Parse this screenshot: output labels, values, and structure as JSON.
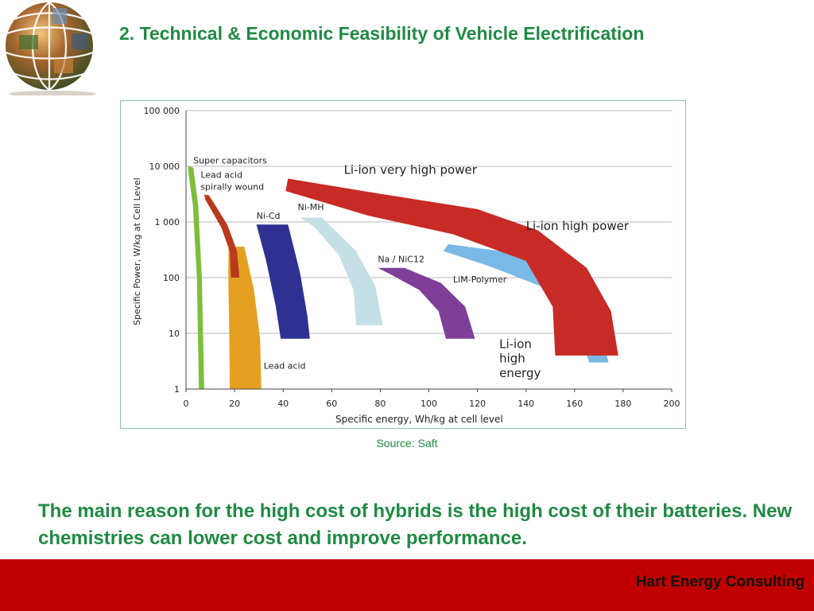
{
  "header": {
    "title": "2. Technical & Economic Feasibility of Vehicle Electrification"
  },
  "logo": {
    "icon": "globe-photo-collage-icon"
  },
  "source": "Source: Saft",
  "message": "The main reason for the high cost of hybrids is the high cost of their batteries. New chemistries can lower cost and improve performance.",
  "footer": {
    "company": "Hart Energy Consulting",
    "color": "#c00000"
  },
  "colors": {
    "accent": "#1f8a43"
  },
  "chart_data": {
    "type": "area",
    "xlabel": "Specific energy, Wh/kg at cell level",
    "ylabel": "Specific Power, W/kg at Cell Level",
    "xlim": [
      0,
      200
    ],
    "ylim": [
      1,
      100000
    ],
    "yscale": "log",
    "grid": "horizontal",
    "x_ticks": [
      "0",
      "20",
      "40",
      "60",
      "80",
      "100",
      "120",
      "140",
      "160",
      "180",
      "200"
    ],
    "y_ticks": [
      "1",
      "10",
      "100",
      "1 000",
      "10 000",
      "100 000"
    ],
    "regions": [
      {
        "name": "Super capacitors",
        "color": "#7cbf3a",
        "energy_range": [
          1,
          8
        ],
        "power_range": [
          1,
          10000
        ]
      },
      {
        "name": "Lead acid",
        "color": "#e6a021",
        "energy_range": [
          17,
          31
        ],
        "power_range": [
          1,
          350
        ]
      },
      {
        "name": "Lead acid spirally wound",
        "color": "#b83a1e",
        "energy_range": [
          7,
          22
        ],
        "power_range": [
          100,
          3000
        ]
      },
      {
        "name": "Ni-Cd",
        "color": "#2e3191",
        "energy_range": [
          28,
          51
        ],
        "power_range": [
          8,
          900
        ]
      },
      {
        "name": "Ni-MH",
        "color": "#c5dfe6",
        "energy_range": [
          47,
          81
        ],
        "power_range": [
          14,
          1200
        ]
      },
      {
        "name": "Na / NiC12",
        "color": "#7f3f98",
        "energy_range": [
          79,
          119
        ],
        "power_range": [
          8,
          150
        ]
      },
      {
        "name": "LiM-Polymer",
        "color": "#7ab8e6",
        "energy_range": [
          106,
          174
        ],
        "power_range": [
          3,
          350
        ]
      },
      {
        "name": "Li-ion very high power",
        "color": "#c82a25",
        "energy_range": [
          41,
          178
        ],
        "power_range": [
          4,
          6000
        ]
      },
      {
        "name": "Li-ion high power",
        "color": "#c82a25",
        "energy_range": [],
        "power_range": []
      },
      {
        "name": "Li-ion high energy",
        "color": "#c82a25",
        "energy_range": [],
        "power_range": []
      }
    ]
  }
}
